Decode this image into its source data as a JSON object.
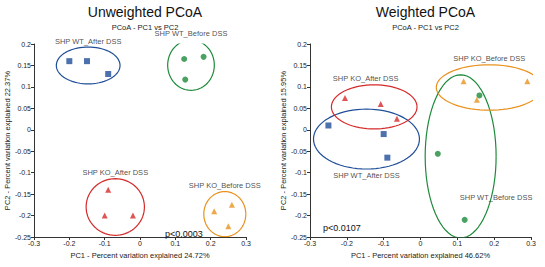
{
  "chart_data": [
    {
      "type": "scatter",
      "title": "Unweighted PCoA",
      "subtitle": "PCoA - PC1 vs PC2",
      "xlabel": "PC1 - Percent variation explained 24.72%",
      "ylabel": "PC2 - Percent variation explained 22.37%",
      "annotation": "p<0.0003",
      "xlim": [
        -0.3,
        0.3
      ],
      "xticks": [
        -0.3,
        -0.2,
        -0.1,
        0,
        0.1,
        0.2,
        0.3
      ],
      "ylim": [
        -0.25,
        0.2
      ],
      "yticks": [
        -0.25,
        -0.2,
        -0.15,
        -0.1,
        -0.05,
        0,
        0.05,
        0.1,
        0.15,
        0.2
      ],
      "grid": false,
      "series": [
        {
          "name": "SHP WT_After DSS",
          "color": "#1f4e99",
          "marker": "square",
          "x": [
            -0.2,
            -0.15,
            -0.09
          ],
          "y": [
            0.16,
            0.16,
            0.13
          ]
        },
        {
          "name": "SHP WT_Before DSS",
          "color": "#1d8a3a",
          "marker": "circle",
          "x": [
            0.125,
            0.18,
            0.128
          ],
          "y": [
            0.165,
            0.17,
            0.117
          ]
        },
        {
          "name": "SHP KO_After DSS",
          "color": "#d42a2a",
          "marker": "triangle",
          "x": [
            -0.09,
            -0.1,
            -0.02
          ],
          "y": [
            -0.14,
            -0.2,
            -0.2
          ]
        },
        {
          "name": "SHP KO_Before DSS",
          "color": "#e8921f",
          "marker": "triangle",
          "x": [
            0.21,
            0.25,
            0.26
          ],
          "y": [
            -0.19,
            -0.225,
            -0.175
          ]
        }
      ]
    },
    {
      "type": "scatter",
      "title": "Weighted PCoA",
      "subtitle": "PCoA - PC1 vs PC2",
      "xlabel": "PC1 - Percent variation explained 46.62%",
      "ylabel": "PC2 - Percent variation explained 15.95%",
      "annotation": "p<0.0107",
      "xlim": [
        -0.3,
        0.3
      ],
      "xticks": [
        -0.3,
        -0.2,
        -0.1,
        0,
        0.1,
        0.2,
        0.3
      ],
      "ylim": [
        -0.25,
        0.2
      ],
      "yticks": [
        -0.25,
        -0.2,
        -0.15,
        -0.1,
        -0.05,
        0,
        0.05,
        0.1,
        0.15,
        0.2
      ],
      "grid": false,
      "series": [
        {
          "name": "SHP WT_After DSS",
          "color": "#1f4e99",
          "marker": "square",
          "x": [
            -0.25,
            -0.1,
            -0.09
          ],
          "y": [
            0.01,
            -0.01,
            -0.065
          ]
        },
        {
          "name": "SHP WT_Before DSS",
          "color": "#1d8a3a",
          "marker": "circle",
          "x": [
            0.16,
            0.047,
            0.12
          ],
          "y": [
            0.08,
            -0.056,
            -0.21
          ]
        },
        {
          "name": "SHP KO_After DSS",
          "color": "#d42a2a",
          "marker": "triangle",
          "x": [
            -0.205,
            -0.108,
            -0.064
          ],
          "y": [
            0.074,
            0.06,
            0.026
          ]
        },
        {
          "name": "SHP KO_Before DSS",
          "color": "#e8921f",
          "marker": "triangle",
          "x": [
            0.117,
            0.153,
            0.29
          ],
          "y": [
            0.113,
            0.07,
            0.113
          ]
        }
      ]
    }
  ]
}
